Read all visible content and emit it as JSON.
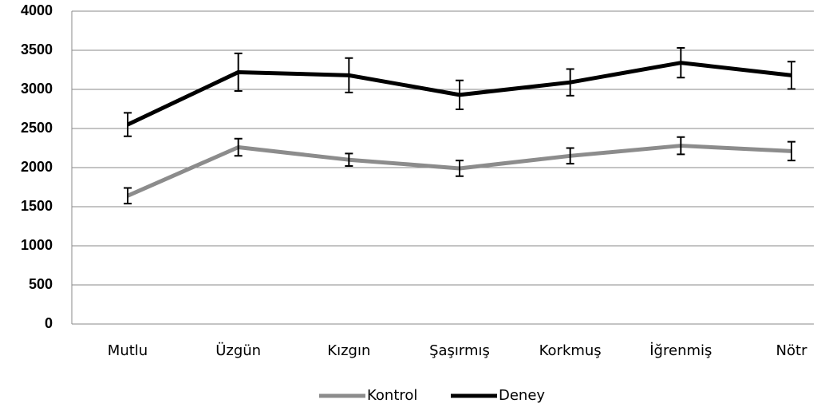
{
  "chart_data": {
    "type": "line",
    "categories": [
      "Mutlu",
      "Üzgün",
      "Kızgın",
      "Şaşırmış",
      "Korkmuş",
      "İğrenmiş",
      "Nötr"
    ],
    "series": [
      {
        "name": "Kontrol",
        "color": "#8c8c8c",
        "values": [
          1640,
          2260,
          2100,
          1990,
          2150,
          2280,
          2210
        ],
        "errors": [
          100,
          110,
          80,
          100,
          100,
          110,
          120
        ]
      },
      {
        "name": "Deney",
        "color": "#000000",
        "values": [
          2550,
          3220,
          3180,
          2930,
          3090,
          3340,
          3180
        ],
        "errors": [
          150,
          240,
          220,
          185,
          170,
          190,
          175
        ]
      }
    ],
    "ylim": [
      0,
      4000
    ],
    "yticks": [
      0,
      500,
      1000,
      1500,
      2000,
      2500,
      3000,
      3500,
      4000
    ],
    "grid": true,
    "legend": "bottom"
  }
}
